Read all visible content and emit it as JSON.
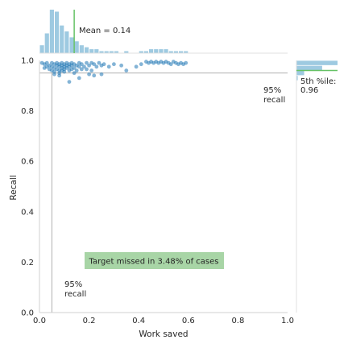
{
  "chart_data": {
    "type": "scatter",
    "title": "",
    "xlabel": "Work saved",
    "ylabel": "Recall",
    "xlim": [
      0.0,
      1.0
    ],
    "ylim": [
      0.0,
      1.0
    ],
    "xticks": [
      "0.0",
      "0.2",
      "0.4",
      "0.6",
      "0.8",
      "1.0"
    ],
    "yticks": [
      "0.0",
      "0.2",
      "0.4",
      "0.6",
      "0.8",
      "1.0"
    ],
    "grid": false,
    "colors": {
      "points": "#1f77b4",
      "hist": "#9ecae1",
      "mean_line": "#66c266",
      "target_box": "#a8d5a6",
      "ref_line": "#b0b0b0"
    },
    "recall_target": 0.95,
    "work_saved_at_target": 0.05,
    "points": [
      [
        0.01,
        0.99
      ],
      [
        0.02,
        0.985
      ],
      [
        0.02,
        0.97
      ],
      [
        0.03,
        0.99
      ],
      [
        0.03,
        0.975
      ],
      [
        0.04,
        0.98
      ],
      [
        0.04,
        0.965
      ],
      [
        0.05,
        0.99
      ],
      [
        0.05,
        0.975
      ],
      [
        0.05,
        0.96
      ],
      [
        0.06,
        0.985
      ],
      [
        0.06,
        0.97
      ],
      [
        0.06,
        0.955
      ],
      [
        0.07,
        0.99
      ],
      [
        0.07,
        0.98
      ],
      [
        0.07,
        0.965
      ],
      [
        0.08,
        0.985
      ],
      [
        0.08,
        0.975
      ],
      [
        0.08,
        0.96
      ],
      [
        0.08,
        0.95
      ],
      [
        0.09,
        0.99
      ],
      [
        0.09,
        0.98
      ],
      [
        0.09,
        0.97
      ],
      [
        0.09,
        0.96
      ],
      [
        0.1,
        0.985
      ],
      [
        0.1,
        0.975
      ],
      [
        0.1,
        0.965
      ],
      [
        0.1,
        0.955
      ],
      [
        0.11,
        0.99
      ],
      [
        0.11,
        0.98
      ],
      [
        0.11,
        0.97
      ],
      [
        0.12,
        0.985
      ],
      [
        0.12,
        0.975
      ],
      [
        0.12,
        0.96
      ],
      [
        0.13,
        0.99
      ],
      [
        0.13,
        0.98
      ],
      [
        0.13,
        0.965
      ],
      [
        0.14,
        0.985
      ],
      [
        0.14,
        0.97
      ],
      [
        0.15,
        0.98
      ],
      [
        0.15,
        0.96
      ],
      [
        0.16,
        0.99
      ],
      [
        0.16,
        0.975
      ],
      [
        0.17,
        0.985
      ],
      [
        0.17,
        0.965
      ],
      [
        0.18,
        0.975
      ],
      [
        0.19,
        0.99
      ],
      [
        0.19,
        0.965
      ],
      [
        0.2,
        0.98
      ],
      [
        0.21,
        0.99
      ],
      [
        0.21,
        0.96
      ],
      [
        0.22,
        0.985
      ],
      [
        0.23,
        0.975
      ],
      [
        0.24,
        0.99
      ],
      [
        0.25,
        0.98
      ],
      [
        0.26,
        0.985
      ],
      [
        0.28,
        0.975
      ],
      [
        0.3,
        0.985
      ],
      [
        0.33,
        0.98
      ],
      [
        0.35,
        0.96
      ],
      [
        0.12,
        0.915
      ],
      [
        0.16,
        0.93
      ],
      [
        0.2,
        0.945
      ],
      [
        0.25,
        0.945
      ],
      [
        0.06,
        0.945
      ],
      [
        0.08,
        0.94
      ],
      [
        0.14,
        0.95
      ],
      [
        0.22,
        0.94
      ],
      [
        0.41,
        0.985
      ],
      [
        0.43,
        0.995
      ],
      [
        0.44,
        0.99
      ],
      [
        0.45,
        0.995
      ],
      [
        0.46,
        0.99
      ],
      [
        0.47,
        0.995
      ],
      [
        0.48,
        0.99
      ],
      [
        0.49,
        0.995
      ],
      [
        0.5,
        0.99
      ],
      [
        0.51,
        0.995
      ],
      [
        0.52,
        0.99
      ],
      [
        0.53,
        0.985
      ],
      [
        0.54,
        0.995
      ],
      [
        0.55,
        0.99
      ],
      [
        0.56,
        0.985
      ],
      [
        0.57,
        0.99
      ],
      [
        0.58,
        0.985
      ],
      [
        0.59,
        0.99
      ],
      [
        0.39,
        0.975
      ]
    ],
    "x_hist": {
      "bin_starts": [
        0.0,
        0.02,
        0.04,
        0.06,
        0.08,
        0.1,
        0.12,
        0.14,
        0.16,
        0.18,
        0.2,
        0.22,
        0.24,
        0.26,
        0.28,
        0.3,
        0.32,
        0.34,
        0.36,
        0.38,
        0.4,
        0.42,
        0.44,
        0.46,
        0.48,
        0.5,
        0.52,
        0.54,
        0.56,
        0.58
      ],
      "counts": [
        4,
        10,
        22,
        21,
        14,
        11,
        8,
        6,
        4,
        3,
        2,
        2,
        1,
        1,
        1,
        1,
        0,
        1,
        0,
        0,
        1,
        1,
        2,
        2,
        2,
        2,
        1,
        1,
        1,
        1
      ],
      "mean": 0.14,
      "mean_label": "Mean = 0.14"
    },
    "y_hist": {
      "bin_starts": [
        0.92,
        0.94,
        0.96,
        0.98
      ],
      "counts": [
        1,
        6,
        20,
        32
      ],
      "percentile_value": 0.96,
      "percentile_label": "5th %ile:\n0.96"
    },
    "annotations": {
      "target_missed": "Target missed in 3.48% of cases",
      "recall_top": "95%\nrecall",
      "recall_bottom": "95%\nrecall"
    }
  }
}
